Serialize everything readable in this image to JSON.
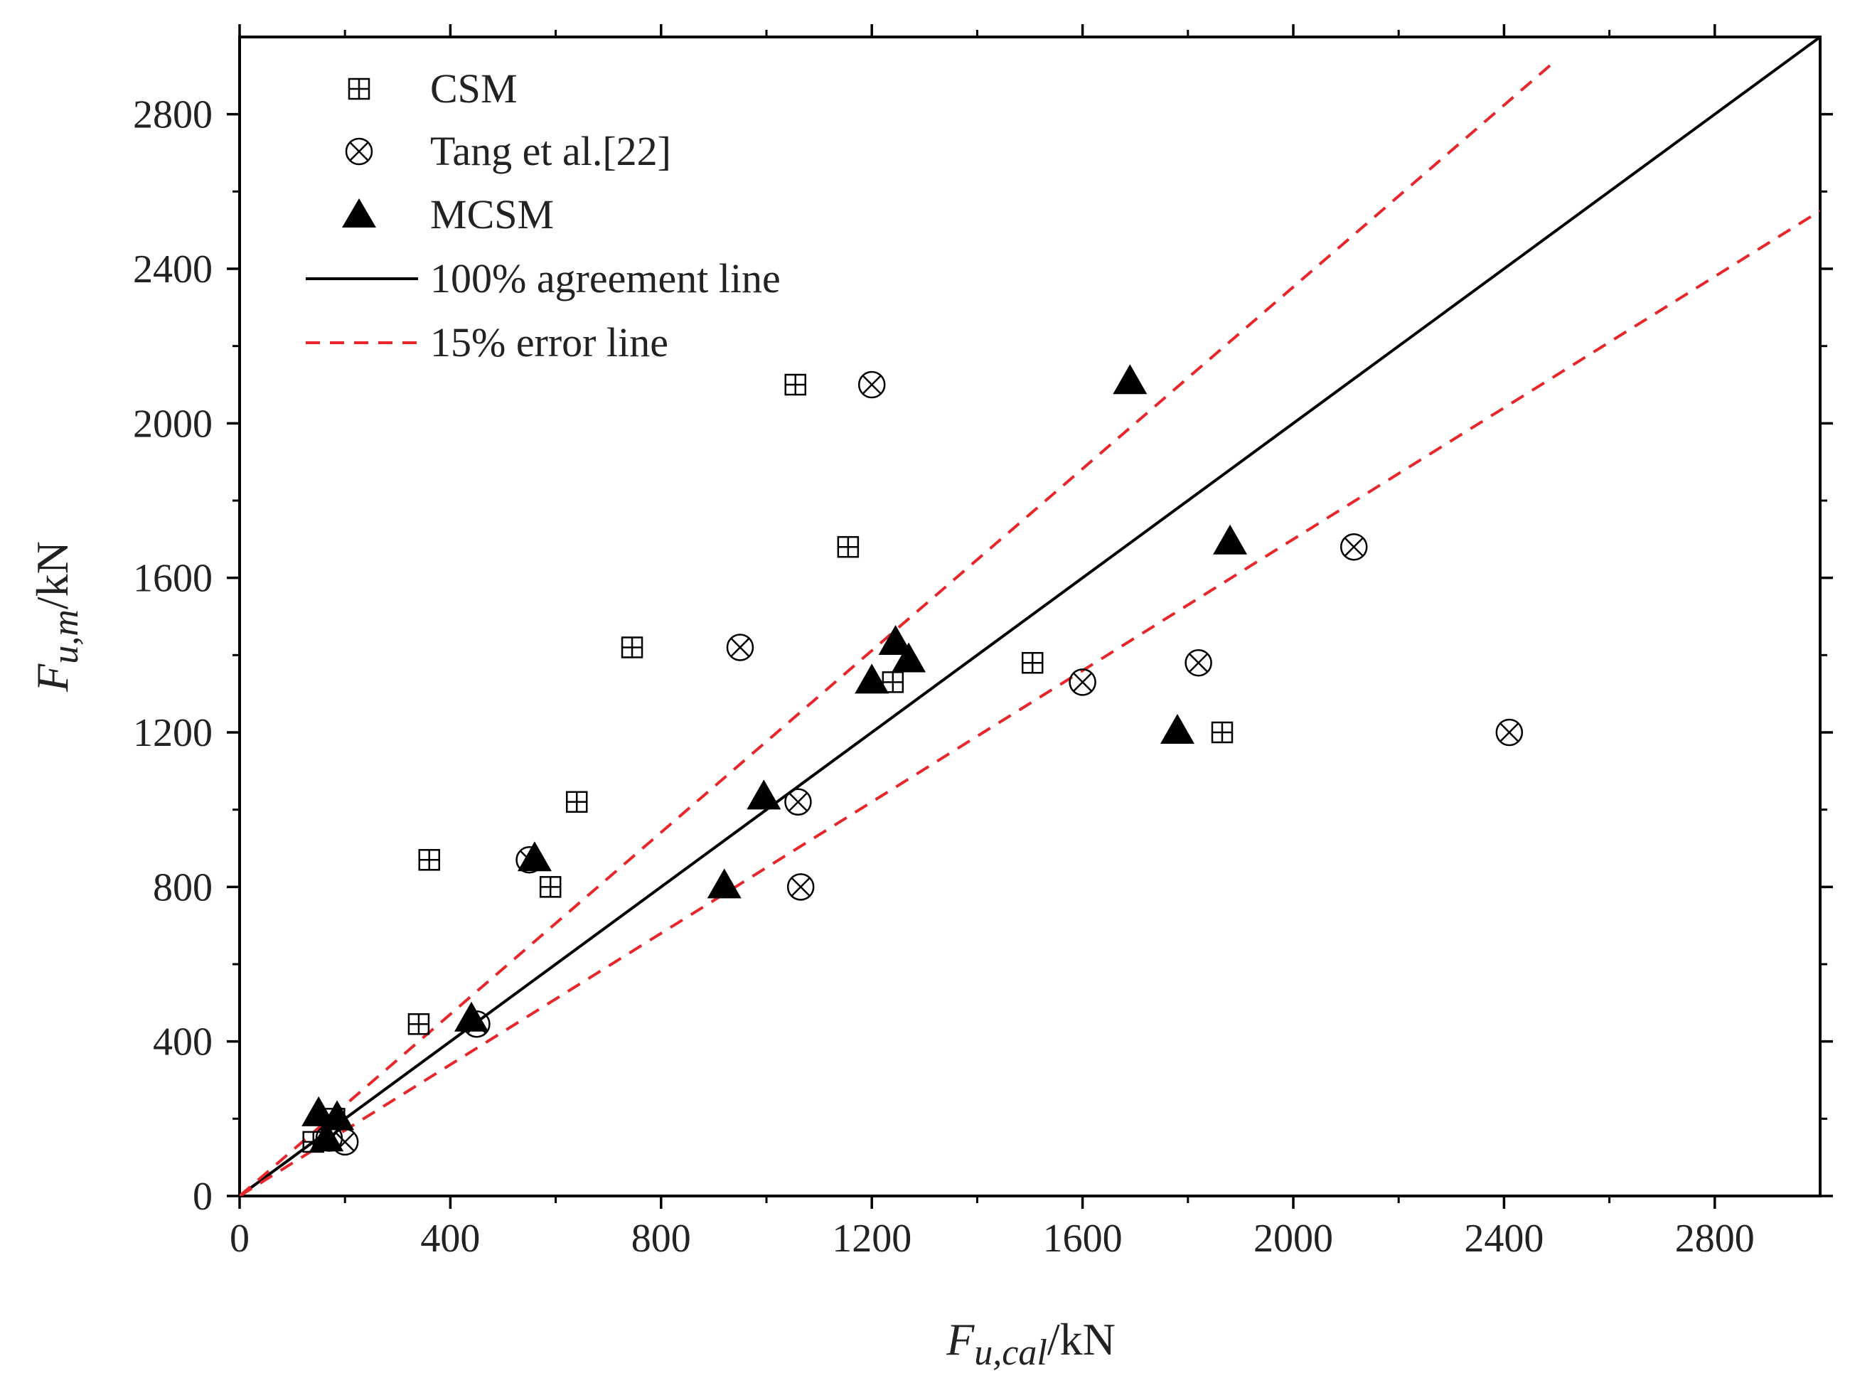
{
  "chart_data": {
    "type": "scatter",
    "title": "",
    "xlim": [
      0,
      3000
    ],
    "ylim": [
      0,
      3000
    ],
    "xticks": [
      0,
      400,
      800,
      1200,
      1600,
      2000,
      2400,
      2800
    ],
    "yticks": [
      0,
      400,
      800,
      1200,
      1600,
      2000,
      2400,
      2800
    ],
    "xlabel": {
      "main": "F",
      "sub": "u,cal",
      "unit": "/kN"
    },
    "ylabel": {
      "main": "F",
      "sub": "u,m",
      "unit": "/kN"
    },
    "grid": false,
    "legend_position": "top-left",
    "legend": {
      "csm": "CSM",
      "tang": "Tang et al.[22]",
      "mcsm": "MCSM",
      "agreement": "100% agreement line",
      "error": "15% error line"
    },
    "colors": {
      "agreement": "#000000",
      "error": "#e8262a",
      "marker": "#000000"
    },
    "series": [
      {
        "name": "CSM",
        "marker": "square-plus",
        "points": [
          [
            140,
            140
          ],
          [
            180,
            200
          ],
          [
            340,
            445
          ],
          [
            360,
            870
          ],
          [
            590,
            800
          ],
          [
            640,
            1020
          ],
          [
            745,
            1420
          ],
          [
            1055,
            2100
          ],
          [
            1155,
            1680
          ],
          [
            1240,
            1330
          ],
          [
            1505,
            1380
          ],
          [
            1865,
            1200
          ]
        ]
      },
      {
        "name": "Tang et al.[22]",
        "marker": "circle-x",
        "points": [
          [
            170,
            150
          ],
          [
            200,
            140
          ],
          [
            450,
            445
          ],
          [
            550,
            870
          ],
          [
            950,
            1420
          ],
          [
            1060,
            1020
          ],
          [
            1065,
            800
          ],
          [
            1200,
            2100
          ],
          [
            1600,
            1330
          ],
          [
            1820,
            1380
          ],
          [
            2115,
            1680
          ],
          [
            2410,
            1200
          ]
        ]
      },
      {
        "name": "MCSM",
        "marker": "triangle",
        "points": [
          [
            150,
            210
          ],
          [
            185,
            200
          ],
          [
            165,
            145
          ],
          [
            440,
            455
          ],
          [
            560,
            870
          ],
          [
            920,
            800
          ],
          [
            995,
            1030
          ],
          [
            1200,
            1330
          ],
          [
            1245,
            1430
          ],
          [
            1270,
            1385
          ],
          [
            1690,
            2105
          ],
          [
            1780,
            1200
          ],
          [
            1880,
            1690
          ]
        ]
      }
    ],
    "lines": [
      {
        "name": "100% agreement line",
        "slope": 1.0,
        "style": "solid",
        "x_end": 3000
      },
      {
        "name": "15% error line (upper)",
        "slope": 1.17647,
        "style": "dashed",
        "x_end": 2500
      },
      {
        "name": "15% error line (lower)",
        "slope": 0.85,
        "style": "dashed",
        "x_end": 3000
      }
    ]
  }
}
